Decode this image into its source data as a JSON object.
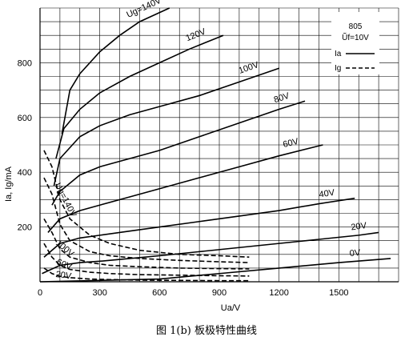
{
  "caption": "图  1(b)  板极特性曲线",
  "chart_data": {
    "type": "line",
    "title": "",
    "xlabel": "Ua/V",
    "ylabel": "Ia, Ig/mA",
    "xlim": [
      0,
      1800
    ],
    "ylim": [
      0,
      1000
    ],
    "x_ticks": [
      0,
      300,
      600,
      900,
      1200,
      1500
    ],
    "y_ticks": [
      200,
      400,
      600,
      800
    ],
    "grid": true,
    "legend": {
      "position": "top-right",
      "title_line1": "805",
      "title_line2": "Ũf=10V",
      "entries": [
        {
          "label": "Ia",
          "style": "solid"
        },
        {
          "label": "Ig",
          "style": "dashed"
        }
      ]
    },
    "series": [
      {
        "name": "Ug=140V",
        "kind": "Ia",
        "label": "Ug=140V",
        "x": [
          110,
          150,
          200,
          300,
          400,
          500,
          650
        ],
        "y": [
          540,
          700,
          760,
          840,
          900,
          950,
          1000
        ]
      },
      {
        "name": "120V",
        "kind": "Ia",
        "label": "120V",
        "x": [
          80,
          120,
          200,
          300,
          450,
          600,
          750,
          920
        ],
        "y": [
          450,
          560,
          630,
          690,
          750,
          800,
          850,
          900
        ]
      },
      {
        "name": "100V",
        "kind": "Ia",
        "label": "100V",
        "x": [
          70,
          100,
          200,
          300,
          450,
          600,
          800,
          1000,
          1200
        ],
        "y": [
          350,
          450,
          530,
          570,
          610,
          640,
          680,
          730,
          780
        ]
      },
      {
        "name": "80V",
        "kind": "Ia",
        "label": "80V",
        "x": [
          60,
          100,
          200,
          300,
          450,
          600,
          800,
          1000,
          1200,
          1330
        ],
        "y": [
          280,
          330,
          390,
          420,
          450,
          480,
          530,
          580,
          630,
          660
        ]
      },
      {
        "name": "60V",
        "kind": "Ia",
        "label": "60V",
        "x": [
          40,
          100,
          200,
          300,
          450,
          600,
          800,
          1000,
          1200,
          1420
        ],
        "y": [
          180,
          230,
          260,
          280,
          310,
          340,
          380,
          420,
          460,
          500
        ]
      },
      {
        "name": "40V",
        "kind": "Ia",
        "label": "40V",
        "x": [
          20,
          100,
          200,
          300,
          450,
          600,
          800,
          1000,
          1200,
          1400,
          1580
        ],
        "y": [
          90,
          140,
          160,
          170,
          185,
          200,
          220,
          240,
          260,
          285,
          305
        ]
      },
      {
        "name": "20V",
        "kind": "Ia",
        "label": "20V",
        "x": [
          10,
          100,
          200,
          300,
          450,
          600,
          800,
          1000,
          1200,
          1400,
          1600,
          1700
        ],
        "y": [
          30,
          60,
          70,
          75,
          85,
          95,
          110,
          125,
          140,
          155,
          170,
          180
        ]
      },
      {
        "name": "0V",
        "kind": "Ia",
        "label": "0V",
        "x": [
          0,
          300,
          600,
          900,
          1200,
          1500,
          1760
        ],
        "y": [
          0,
          5,
          10,
          30,
          50,
          70,
          85
        ]
      },
      {
        "name": "Ig Ug=140V",
        "kind": "Ig",
        "label": "Ug=140V",
        "x": [
          20,
          60,
          100,
          150,
          250,
          350,
          500,
          700,
          900,
          1050
        ],
        "y": [
          480,
          420,
          300,
          230,
          170,
          140,
          115,
          100,
          95,
          90
        ]
      },
      {
        "name": "Ig 120V",
        "kind": "Ig",
        "label": "",
        "x": [
          20,
          60,
          100,
          150,
          250,
          350,
          500,
          700,
          900,
          1050
        ],
        "y": [
          380,
          320,
          210,
          150,
          110,
          95,
          85,
          78,
          73,
          70
        ]
      },
      {
        "name": "Ig 100V",
        "kind": "Ig",
        "label": "100V",
        "x": [
          20,
          60,
          100,
          150,
          250,
          350,
          500,
          700,
          900,
          1050
        ],
        "y": [
          230,
          180,
          120,
          90,
          70,
          60,
          55,
          50,
          48,
          47
        ]
      },
      {
        "name": "Ig 60V",
        "kind": "Ig",
        "label": "60V",
        "x": [
          20,
          60,
          100,
          150,
          250,
          350,
          500,
          700,
          900,
          1050
        ],
        "y": [
          140,
          90,
          60,
          45,
          35,
          30,
          26,
          24,
          22,
          21
        ]
      },
      {
        "name": "Ig 20V",
        "kind": "Ig",
        "label": "20V",
        "x": [
          20,
          60,
          100,
          150,
          250,
          350,
          500,
          700,
          900,
          1050
        ],
        "y": [
          50,
          30,
          20,
          15,
          10,
          8,
          6,
          5,
          4,
          4
        ]
      }
    ]
  }
}
